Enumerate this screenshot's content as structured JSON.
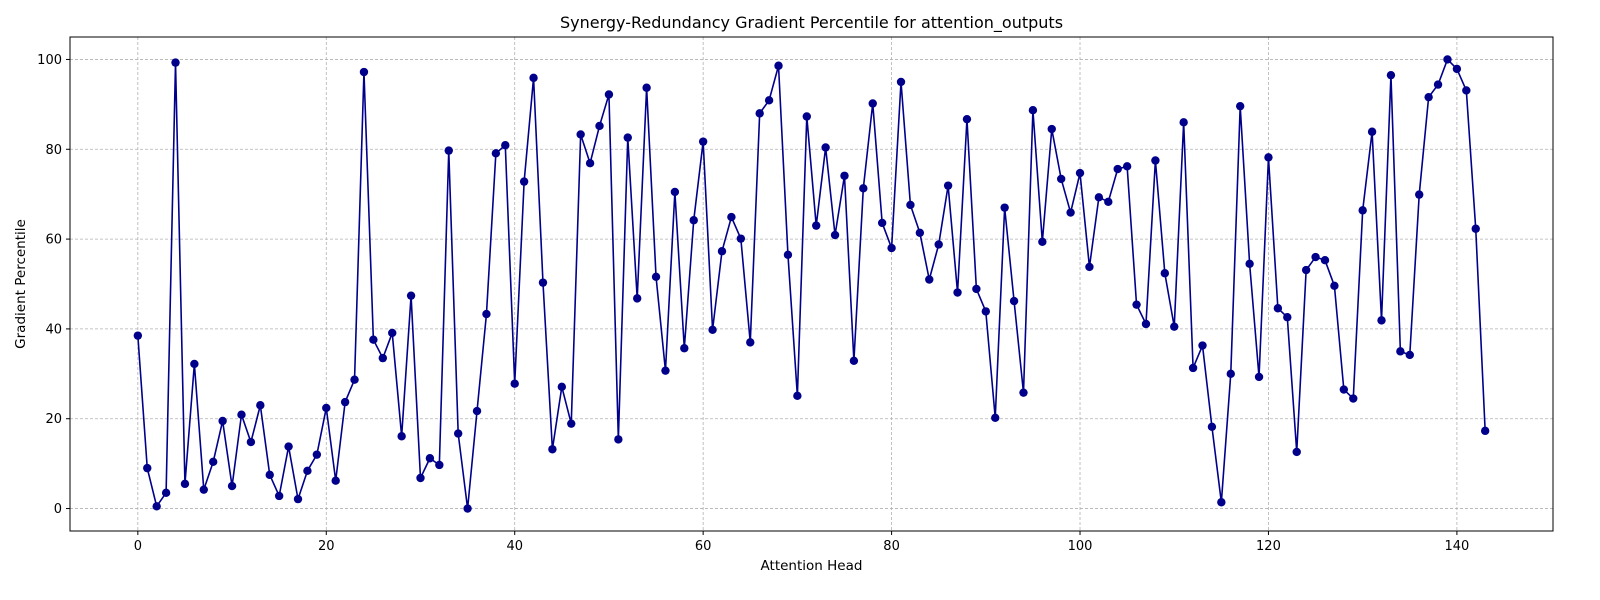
{
  "chart_data": {
    "type": "line",
    "title": "Synergy-Redundancy Gradient Percentile for attention_outputs",
    "xlabel": "Attention Head",
    "ylabel": "Gradient Percentile",
    "xlim": [
      -7.2,
      150.2
    ],
    "ylim": [
      -5,
      105
    ],
    "xticks": [
      0,
      20,
      40,
      60,
      80,
      100,
      120,
      140
    ],
    "yticks": [
      0,
      20,
      40,
      60,
      80,
      100
    ],
    "grid": true,
    "marker": "circle",
    "color": "#00008b",
    "series": [
      {
        "x": [
          0,
          1,
          2,
          3,
          4,
          5,
          6,
          7,
          8,
          9,
          10,
          11,
          12,
          13,
          14,
          15,
          16,
          17,
          18,
          19,
          20,
          21,
          22,
          23,
          24,
          25,
          26,
          27,
          28,
          29,
          30,
          31,
          32,
          33,
          34,
          35,
          36,
          37,
          38,
          39,
          40,
          41,
          42,
          43,
          44,
          45,
          46,
          47,
          48,
          49,
          50,
          51,
          52,
          53,
          54,
          55,
          56,
          57,
          58,
          59,
          60,
          61,
          62,
          63,
          64,
          65,
          66,
          67,
          68,
          69,
          70,
          71,
          72,
          73,
          74,
          75,
          76,
          77,
          78,
          79,
          80,
          81,
          82,
          83,
          84,
          85,
          86,
          87,
          88,
          89,
          90,
          91,
          92,
          93,
          94,
          95,
          96,
          97,
          98,
          99,
          100,
          101,
          102,
          103,
          104,
          105,
          106,
          107,
          108,
          109,
          110,
          111,
          112,
          113,
          114,
          115,
          116,
          117,
          118,
          119,
          120,
          121,
          122,
          123,
          124,
          125,
          126,
          127,
          128,
          129,
          130,
          131,
          132,
          133,
          134,
          135,
          136,
          137,
          138,
          139,
          140,
          141,
          142,
          143
        ],
        "values": [
          38.5,
          9,
          0.5,
          3.5,
          99.3,
          5.5,
          32.2,
          4.2,
          10.4,
          19.5,
          5,
          20.9,
          14.8,
          23,
          7.5,
          2.8,
          13.8,
          2.1,
          8.4,
          12,
          22.4,
          6.2,
          23.7,
          28.7,
          97.2,
          37.6,
          33.5,
          39.1,
          16.1,
          47.4,
          6.8,
          11.2,
          9.7,
          79.7,
          16.7,
          0,
          21.7,
          43.3,
          79.1,
          80.9,
          27.8,
          72.8,
          95.9,
          50.3,
          13.2,
          27.1,
          18.9,
          83.3,
          76.9,
          85.2,
          92.2,
          15.4,
          82.6,
          46.8,
          93.7,
          51.6,
          30.7,
          70.5,
          35.7,
          64.2,
          81.7,
          39.8,
          57.3,
          64.9,
          60.1,
          37,
          88,
          90.9,
          98.6,
          56.5,
          25.1,
          87.3,
          63,
          80.4,
          60.9,
          74.1,
          32.9,
          71.3,
          90.2,
          63.6,
          58,
          95,
          67.6,
          61.4,
          51,
          58.8,
          71.9,
          48.1,
          86.7,
          48.9,
          43.9,
          20.2,
          67,
          46.2,
          25.8,
          88.7,
          59.4,
          84.5,
          73.4,
          65.9,
          74.7,
          53.8,
          69.3,
          68.3,
          75.6,
          76.2,
          45.4,
          41.1,
          77.5,
          52.4,
          40.5,
          86,
          31.3,
          36.3,
          18.2,
          1.4,
          30,
          89.6,
          54.5,
          29.3,
          78.2,
          44.6,
          42.6,
          12.6,
          53.1,
          56,
          55.3,
          49.6,
          26.5,
          24.5,
          66.4,
          83.9,
          41.9,
          96.5,
          35,
          34.2,
          69.9,
          91.6,
          94.4,
          100,
          97.9,
          93.1,
          62.3,
          17.3
        ]
      }
    ]
  }
}
